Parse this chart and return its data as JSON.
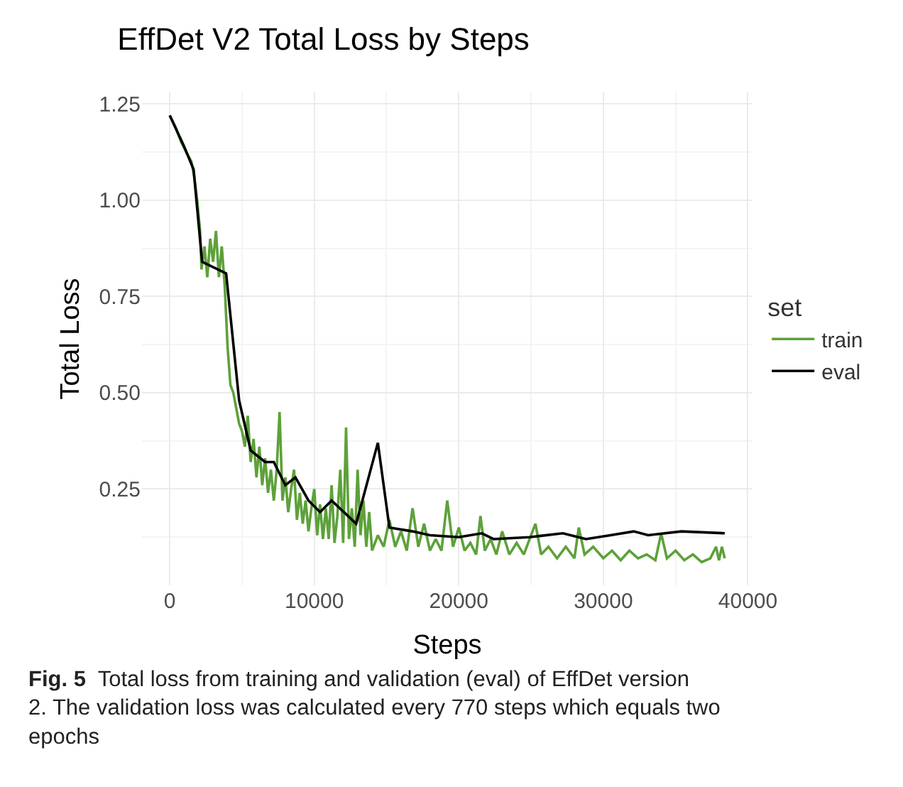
{
  "chart_data": {
    "type": "line",
    "title": "EffDet V2 Total Loss by Steps",
    "xlabel": "Steps",
    "ylabel": "Total Loss",
    "legend_title": "set",
    "annotations": [
      "Fig. 5",
      "Total loss from training and validation (eval) of EffDet version 2. The validation loss was calculated every 770 steps which equals two epochs"
    ],
    "xlim": [
      -1920,
      40320
    ],
    "xticks": [
      0,
      10000,
      20000,
      30000,
      40000
    ],
    "ylim": [
      0.0,
      1.28
    ],
    "yticks": [
      {
        "value": 0.25,
        "label": "0.25"
      },
      {
        "value": 0.5,
        "label": "0.50"
      },
      {
        "value": 0.75,
        "label": "0.75"
      },
      {
        "value": 1.0,
        "label": "1.00"
      },
      {
        "value": 1.25,
        "label": "1.25"
      }
    ],
    "grid": true,
    "legend": "right",
    "line_style": "solid",
    "marker": "none",
    "series": [
      {
        "name": "train",
        "color": "#5da13a",
        "x": [
          0,
          400,
          800,
          1200,
          1500,
          1700,
          1900,
          2100,
          2200,
          2400,
          2600,
          2800,
          3000,
          3200,
          3400,
          3600,
          3800,
          4000,
          4200,
          4400,
          4600,
          4800,
          5000,
          5200,
          5400,
          5600,
          5800,
          6000,
          6200,
          6400,
          6600,
          6800,
          7000,
          7200,
          7400,
          7600,
          7800,
          8000,
          8200,
          8400,
          8600,
          8800,
          9000,
          9200,
          9400,
          9600,
          9800,
          10000,
          10200,
          10400,
          10600,
          10800,
          11000,
          11200,
          11400,
          11600,
          11800,
          12000,
          12200,
          12400,
          12600,
          12800,
          13000,
          13200,
          13400,
          13600,
          13800,
          14000,
          14400,
          14800,
          15200,
          15600,
          16000,
          16400,
          16800,
          17200,
          17600,
          18000,
          18400,
          18800,
          19200,
          19600,
          20000,
          20400,
          20800,
          21200,
          21500,
          21800,
          22200,
          22600,
          23000,
          23500,
          24000,
          24500,
          25300,
          25700,
          26200,
          26800,
          27400,
          28000,
          28300,
          28700,
          29300,
          30000,
          30600,
          31200,
          31800,
          32400,
          33000,
          33600,
          34000,
          34400,
          35000,
          35600,
          36200,
          36800,
          37400,
          37800,
          38000,
          38200,
          38400
        ],
        "values": [
          1.22,
          1.19,
          1.15,
          1.12,
          1.1,
          1.06,
          1.0,
          0.92,
          0.82,
          0.88,
          0.8,
          0.9,
          0.84,
          0.92,
          0.8,
          0.88,
          0.78,
          0.62,
          0.52,
          0.5,
          0.46,
          0.42,
          0.4,
          0.36,
          0.44,
          0.32,
          0.38,
          0.28,
          0.36,
          0.26,
          0.33,
          0.24,
          0.3,
          0.22,
          0.3,
          0.45,
          0.22,
          0.28,
          0.19,
          0.25,
          0.3,
          0.17,
          0.24,
          0.16,
          0.22,
          0.14,
          0.2,
          0.25,
          0.13,
          0.21,
          0.12,
          0.2,
          0.12,
          0.26,
          0.11,
          0.18,
          0.3,
          0.11,
          0.41,
          0.12,
          0.2,
          0.1,
          0.3,
          0.13,
          0.22,
          0.1,
          0.19,
          0.09,
          0.13,
          0.1,
          0.17,
          0.1,
          0.14,
          0.09,
          0.2,
          0.1,
          0.16,
          0.09,
          0.12,
          0.09,
          0.22,
          0.1,
          0.15,
          0.09,
          0.11,
          0.08,
          0.18,
          0.09,
          0.12,
          0.08,
          0.14,
          0.08,
          0.11,
          0.08,
          0.16,
          0.08,
          0.1,
          0.07,
          0.1,
          0.07,
          0.15,
          0.08,
          0.1,
          0.07,
          0.09,
          0.065,
          0.09,
          0.07,
          0.08,
          0.065,
          0.135,
          0.07,
          0.09,
          0.065,
          0.08,
          0.06,
          0.07,
          0.1,
          0.065,
          0.1,
          0.07
        ]
      },
      {
        "name": "eval",
        "color": "#000000",
        "x": [
          0,
          990,
          1650,
          2240,
          3900,
          4800,
          5600,
          6600,
          7200,
          8000,
          8700,
          9600,
          10400,
          11200,
          12900,
          14400,
          15200,
          16800,
          18000,
          20000,
          21600,
          22400,
          24900,
          27200,
          28800,
          30500,
          32100,
          33100,
          35400,
          38400
        ],
        "values": [
          1.22,
          1.14,
          1.08,
          0.84,
          0.81,
          0.48,
          0.35,
          0.32,
          0.32,
          0.26,
          0.28,
          0.22,
          0.19,
          0.22,
          0.16,
          0.37,
          0.15,
          0.14,
          0.13,
          0.125,
          0.135,
          0.12,
          0.125,
          0.135,
          0.12,
          0.13,
          0.14,
          0.13,
          0.14,
          0.135
        ]
      }
    ]
  }
}
